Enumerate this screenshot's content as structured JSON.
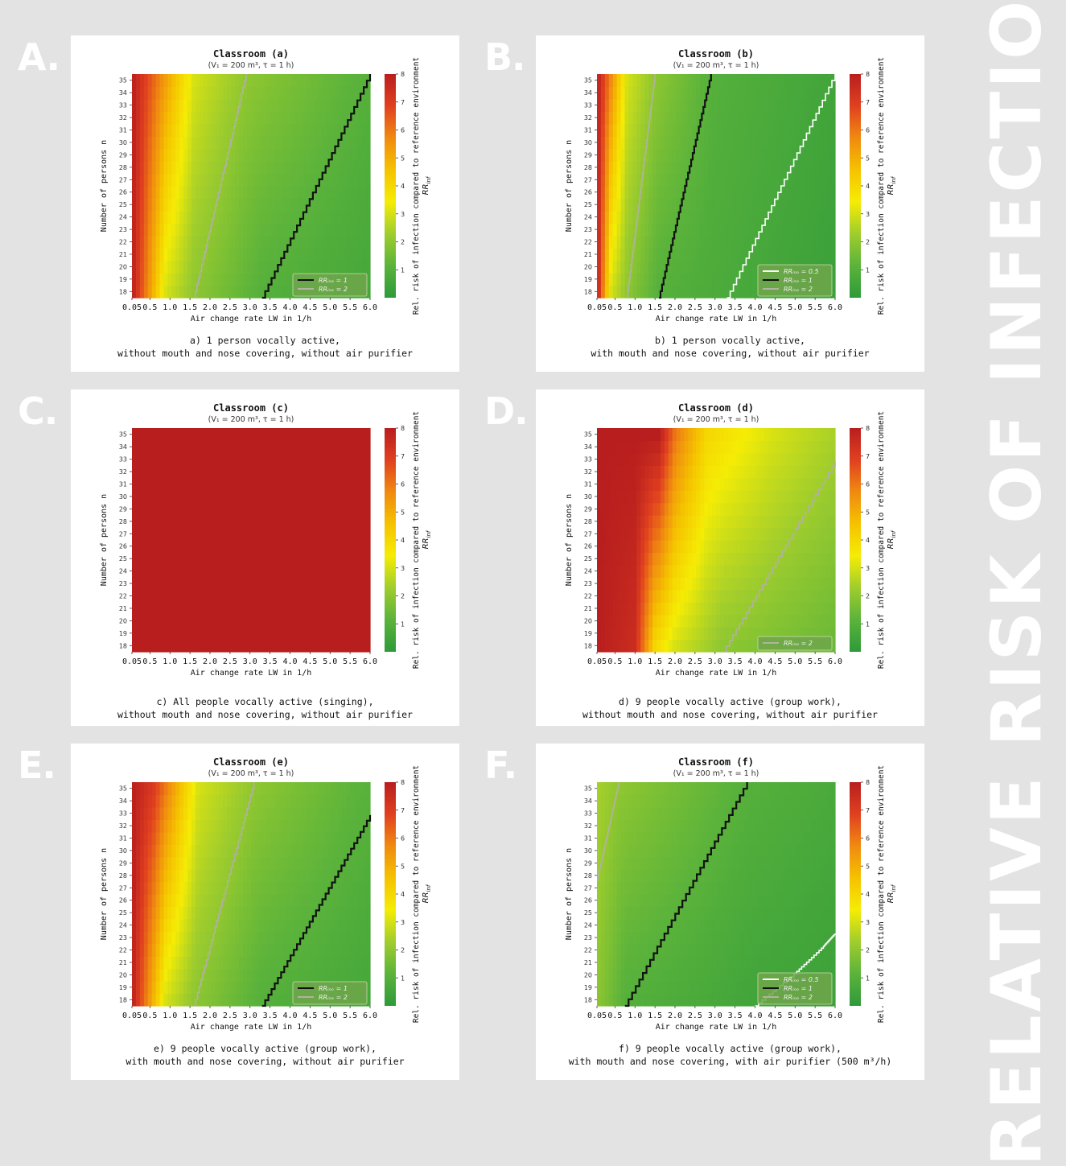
{
  "side_banner": "RELATIVE RISK OF INFECTION",
  "colorbar": {
    "label_main": "Rel. risk of infection compared to reference environment",
    "label_sym": "RR",
    "label_sub": "inf",
    "ticks": [
      "1",
      "2",
      "3",
      "4",
      "5",
      "6",
      "7",
      "8"
    ],
    "colors": [
      "#2e9a3a",
      "#5bb33b",
      "#9fcd2d",
      "#f5ec05",
      "#f5c200",
      "#f08a10",
      "#e04020",
      "#b81e1e"
    ]
  },
  "panels": [
    {
      "letter": "A.",
      "title": "Classroom (a)",
      "subtitle": "(V₁ = 200 m³, τ = 1 h)",
      "caption": [
        "a) 1 person vocally active,",
        "without mouth and nose covering, without air purifier"
      ],
      "legend": [
        {
          "label": "RRᵢₙₒ = 1",
          "color": "#111111"
        },
        {
          "label": "RRᵢₙₒ = 2",
          "color": "#b2b2a0"
        }
      ]
    },
    {
      "letter": "B.",
      "title": "Classroom (b)",
      "subtitle": "(V₁ = 200 m³, τ = 1 h)",
      "caption": [
        "b) 1 person vocally active,",
        "with mouth and nose covering, without air purifier"
      ],
      "legend": [
        {
          "label": "RRᵢₙₒ = 0.5",
          "color": "#ffffff"
        },
        {
          "label": "RRᵢₙₒ = 1",
          "color": "#111111"
        },
        {
          "label": "RRᵢₙₒ = 2",
          "color": "#b2b2a0"
        }
      ]
    },
    {
      "letter": "C.",
      "title": "Classroom (c)",
      "subtitle": "(V₁ = 200 m³, τ = 1 h)",
      "caption": [
        "c) All people vocally active (singing),",
        "without mouth and nose covering, without air purifier"
      ],
      "legend": []
    },
    {
      "letter": "D.",
      "title": "Classroom (d)",
      "subtitle": "(V₁ = 200 m³, τ = 1 h)",
      "caption": [
        "d) 9 people vocally active (group work),",
        "without mouth and nose covering, without air purifier"
      ],
      "legend": [
        {
          "label": "RRᵢₙₒ = 2",
          "color": "#b2b2a0"
        }
      ]
    },
    {
      "letter": "E.",
      "title": "Classroom (e)",
      "subtitle": "(V₁ = 200 m³, τ = 1 h)",
      "caption": [
        "e) 9 people vocally active (group work),",
        "with mouth and nose covering, without air purifier"
      ],
      "legend": [
        {
          "label": "RRᵢₙₒ = 1",
          "color": "#111111"
        },
        {
          "label": "RRᵢₙₒ = 2",
          "color": "#b2b2a0"
        }
      ]
    },
    {
      "letter": "F.",
      "title": "Classroom (f)",
      "subtitle": "(V₁ = 200 m³, τ = 1 h)",
      "caption": [
        "f) 9 people vocally active (group work),",
        "with mouth and nose covering, with air purifier (500 m³/h)"
      ],
      "legend": [
        {
          "label": "RRᵢₙₒ = 0.5",
          "color": "#ffffff"
        },
        {
          "label": "RRᵢₙₒ = 1",
          "color": "#111111"
        },
        {
          "label": "RRᵢₙₒ = 2",
          "color": "#b2b2a0"
        }
      ]
    }
  ],
  "chart_data": [
    {
      "type": "heatmap",
      "title": "Classroom (a)",
      "subtitle": "(V₁ = 200 m³, τ = 1 h)",
      "xlabel": "Air change rate LW in 1/h",
      "ylabel": "Number of persons n",
      "x_ticks": [
        "0.05",
        "0.5",
        "1.0",
        "1.5",
        "2.0",
        "2.5",
        "3.0",
        "3.5",
        "4.0",
        "4.5",
        "5.0",
        "5.5",
        "6.0"
      ],
      "y_ticks": [
        "18",
        "19",
        "20",
        "21",
        "22",
        "23",
        "24",
        "25",
        "26",
        "27",
        "28",
        "29",
        "30",
        "31",
        "32",
        "33",
        "34",
        "35"
      ],
      "xlim": [
        0.05,
        6.0
      ],
      "ylim": [
        18,
        35
      ],
      "color_range": [
        0,
        8
      ],
      "contours": [
        {
          "level": 1,
          "points": [
            [
              3.3,
              18
            ],
            [
              6.0,
              35
            ]
          ]
        },
        {
          "level": 2,
          "points": [
            [
              1.6,
              18
            ],
            [
              2.9,
              35
            ]
          ]
        }
      ],
      "color_stops": [
        {
          "x": 0.05,
          "y": 18,
          "rr": 8
        },
        {
          "x": 0.9,
          "y": 18,
          "rr": 3
        },
        {
          "x": 1.6,
          "y": 18,
          "rr": 2
        },
        {
          "x": 3.3,
          "y": 18,
          "rr": 1
        },
        {
          "x": 6.0,
          "y": 18,
          "rr": 0.6
        },
        {
          "x": 0.05,
          "y": 35,
          "rr": 8
        },
        {
          "x": 1.6,
          "y": 35,
          "rr": 3
        },
        {
          "x": 2.9,
          "y": 35,
          "rr": 2
        },
        {
          "x": 6.0,
          "y": 35,
          "rr": 1
        }
      ],
      "legend": [
        "RR = 1",
        "RR = 2"
      ]
    },
    {
      "type": "heatmap",
      "title": "Classroom (b)",
      "subtitle": "(V₁ = 200 m³, τ = 1 h)",
      "xlabel": "Air change rate LW in 1/h",
      "ylabel": "Number of persons n",
      "x_ticks": [
        "0.05",
        "0.5",
        "1.0",
        "1.5",
        "2.0",
        "2.5",
        "3.0",
        "3.5",
        "4.0",
        "4.5",
        "5.0",
        "5.5",
        "6.0"
      ],
      "y_ticks": [
        "18",
        "19",
        "20",
        "21",
        "22",
        "23",
        "24",
        "25",
        "26",
        "27",
        "28",
        "29",
        "30",
        "31",
        "32",
        "33",
        "34",
        "35"
      ],
      "xlim": [
        0.05,
        6.0
      ],
      "ylim": [
        18,
        35
      ],
      "color_range": [
        0,
        8
      ],
      "contours": [
        {
          "level": 0.5,
          "points": [
            [
              3.3,
              18
            ],
            [
              6.0,
              35
            ]
          ]
        },
        {
          "level": 1,
          "points": [
            [
              1.6,
              18
            ],
            [
              2.9,
              35
            ]
          ]
        },
        {
          "level": 2,
          "points": [
            [
              0.8,
              18
            ],
            [
              1.5,
              35
            ]
          ]
        }
      ],
      "color_stops": [
        {
          "x": 0.05,
          "y": 18,
          "rr": 8
        },
        {
          "x": 0.4,
          "y": 18,
          "rr": 3
        },
        {
          "x": 0.8,
          "y": 18,
          "rr": 2
        },
        {
          "x": 1.6,
          "y": 18,
          "rr": 1
        },
        {
          "x": 6.0,
          "y": 18,
          "rr": 0.3
        },
        {
          "x": 0.05,
          "y": 35,
          "rr": 8
        },
        {
          "x": 0.8,
          "y": 35,
          "rr": 3
        },
        {
          "x": 1.5,
          "y": 35,
          "rr": 2
        },
        {
          "x": 2.9,
          "y": 35,
          "rr": 1
        },
        {
          "x": 6.0,
          "y": 35,
          "rr": 0.5
        }
      ],
      "legend": [
        "RR = 0.5",
        "RR = 1",
        "RR = 2"
      ]
    },
    {
      "type": "heatmap",
      "title": "Classroom (c)",
      "subtitle": "(V₁ = 200 m³, τ = 1 h)",
      "xlabel": "Air change rate LW in 1/h",
      "ylabel": "Number of persons n",
      "x_ticks": [
        "0.05",
        "0.5",
        "1.0",
        "1.5",
        "2.0",
        "2.5",
        "3.0",
        "3.5",
        "4.0",
        "4.5",
        "5.0",
        "5.5",
        "6.0"
      ],
      "y_ticks": [
        "18",
        "19",
        "20",
        "21",
        "22",
        "23",
        "24",
        "25",
        "26",
        "27",
        "28",
        "29",
        "30",
        "31",
        "32",
        "33",
        "34",
        "35"
      ],
      "xlim": [
        0.05,
        6.0
      ],
      "ylim": [
        18,
        35
      ],
      "color_range": [
        0,
        8
      ],
      "contours": [],
      "color_stops": [
        {
          "x": 0.05,
          "y": 18,
          "rr": 8
        },
        {
          "x": 6.0,
          "y": 18,
          "rr": 8
        },
        {
          "x": 0.05,
          "y": 35,
          "rr": 8
        },
        {
          "x": 6.0,
          "y": 35,
          "rr": 8
        }
      ],
      "legend": []
    },
    {
      "type": "heatmap",
      "title": "Classroom (d)",
      "subtitle": "(V₁ = 200 m³, τ = 1 h)",
      "xlabel": "Air change rate LW in 1/h",
      "ylabel": "Number of persons n",
      "x_ticks": [
        "0.05",
        "0.5",
        "1.0",
        "1.5",
        "2.0",
        "2.5",
        "3.0",
        "3.5",
        "4.0",
        "4.5",
        "5.0",
        "5.5",
        "6.0"
      ],
      "y_ticks": [
        "18",
        "19",
        "20",
        "21",
        "22",
        "23",
        "24",
        "25",
        "26",
        "27",
        "28",
        "29",
        "30",
        "31",
        "32",
        "33",
        "34",
        "35"
      ],
      "xlim": [
        0.05,
        6.0
      ],
      "ylim": [
        18,
        35
      ],
      "color_range": [
        0,
        8
      ],
      "contours": [
        {
          "level": 2,
          "points": [
            [
              3.2,
              18
            ],
            [
              6.0,
              32.5
            ]
          ]
        }
      ],
      "color_stops": [
        {
          "x": 0.05,
          "y": 18,
          "rr": 8
        },
        {
          "x": 1.0,
          "y": 18,
          "rr": 7.5
        },
        {
          "x": 1.5,
          "y": 18,
          "rr": 4
        },
        {
          "x": 2.0,
          "y": 18,
          "rr": 3
        },
        {
          "x": 3.2,
          "y": 18,
          "rr": 2
        },
        {
          "x": 6.0,
          "y": 18,
          "rr": 1.4
        },
        {
          "x": 0.05,
          "y": 35,
          "rr": 8
        },
        {
          "x": 1.6,
          "y": 35,
          "rr": 8
        },
        {
          "x": 2.0,
          "y": 35,
          "rr": 6
        },
        {
          "x": 2.8,
          "y": 35,
          "rr": 4
        },
        {
          "x": 4.5,
          "y": 35,
          "rr": 3
        },
        {
          "x": 6.0,
          "y": 35,
          "rr": 2.4
        }
      ],
      "legend": [
        "RR = 2"
      ]
    },
    {
      "type": "heatmap",
      "title": "Classroom (e)",
      "subtitle": "(V₁ = 200 m³, τ = 1 h)",
      "xlabel": "Air change rate LW in 1/h",
      "ylabel": "Number of persons n",
      "x_ticks": [
        "0.05",
        "0.5",
        "1.0",
        "1.5",
        "2.0",
        "2.5",
        "3.0",
        "3.5",
        "4.0",
        "4.5",
        "5.0",
        "5.5",
        "6.0"
      ],
      "y_ticks": [
        "18",
        "19",
        "20",
        "21",
        "22",
        "23",
        "24",
        "25",
        "26",
        "27",
        "28",
        "29",
        "30",
        "31",
        "32",
        "33",
        "34",
        "35"
      ],
      "xlim": [
        0.05,
        6.0
      ],
      "ylim": [
        18,
        35
      ],
      "color_range": [
        0,
        8
      ],
      "contours": [
        {
          "level": 1,
          "points": [
            [
              3.3,
              18
            ],
            [
              6.0,
              32.5
            ]
          ]
        },
        {
          "level": 2,
          "points": [
            [
              1.6,
              18
            ],
            [
              3.1,
              35
            ]
          ]
        }
      ],
      "color_stops": [
        {
          "x": 0.05,
          "y": 18,
          "rr": 8
        },
        {
          "x": 0.9,
          "y": 18,
          "rr": 3
        },
        {
          "x": 1.6,
          "y": 18,
          "rr": 2
        },
        {
          "x": 3.3,
          "y": 18,
          "rr": 1
        },
        {
          "x": 6.0,
          "y": 18,
          "rr": 0.6
        },
        {
          "x": 0.05,
          "y": 35,
          "rr": 8
        },
        {
          "x": 0.6,
          "y": 35,
          "rr": 7
        },
        {
          "x": 1.7,
          "y": 35,
          "rr": 3
        },
        {
          "x": 3.1,
          "y": 35,
          "rr": 2
        },
        {
          "x": 6.0,
          "y": 35,
          "rr": 1.05
        }
      ],
      "legend": [
        "RR = 1",
        "RR = 2"
      ]
    },
    {
      "type": "heatmap",
      "title": "Classroom (f)",
      "subtitle": "(V₁ = 200 m³, τ = 1 h)",
      "xlabel": "Air change rate LW in 1/h",
      "ylabel": "Number of persons n",
      "x_ticks": [
        "0.05",
        "0.5",
        "1.0",
        "1.5",
        "2.0",
        "2.5",
        "3.0",
        "3.5",
        "4.0",
        "4.5",
        "5.0",
        "5.5",
        "6.0"
      ],
      "y_ticks": [
        "18",
        "19",
        "20",
        "21",
        "22",
        "23",
        "24",
        "25",
        "26",
        "27",
        "28",
        "29",
        "30",
        "31",
        "32",
        "33",
        "34",
        "35"
      ],
      "xlim": [
        0.05,
        6.0
      ],
      "ylim": [
        18,
        35
      ],
      "color_range": [
        0,
        8
      ],
      "contours": [
        {
          "level": 0.5,
          "points": [
            [
              4.0,
              18
            ],
            [
              5.0,
              20.5
            ],
            [
              5.7,
              22.5
            ],
            [
              6.0,
              23.5
            ]
          ]
        },
        {
          "level": 1,
          "points": [
            [
              0.75,
              18
            ],
            [
              3.8,
              35
            ]
          ]
        },
        {
          "level": 2,
          "points": [
            [
              0.05,
              27.5
            ],
            [
              0.6,
              35
            ]
          ]
        }
      ],
      "color_stops": [
        {
          "x": 0.05,
          "y": 18,
          "rr": 2
        },
        {
          "x": 0.75,
          "y": 18,
          "rr": 1
        },
        {
          "x": 4.0,
          "y": 18,
          "rr": 0.5
        },
        {
          "x": 6.0,
          "y": 18,
          "rr": 0.35
        },
        {
          "x": 0.05,
          "y": 35,
          "rr": 2.4
        },
        {
          "x": 0.6,
          "y": 35,
          "rr": 2
        },
        {
          "x": 3.8,
          "y": 35,
          "rr": 1
        },
        {
          "x": 6.0,
          "y": 35,
          "rr": 0.7
        }
      ],
      "legend": [
        "RR = 0.5",
        "RR = 1",
        "RR = 2"
      ]
    }
  ]
}
